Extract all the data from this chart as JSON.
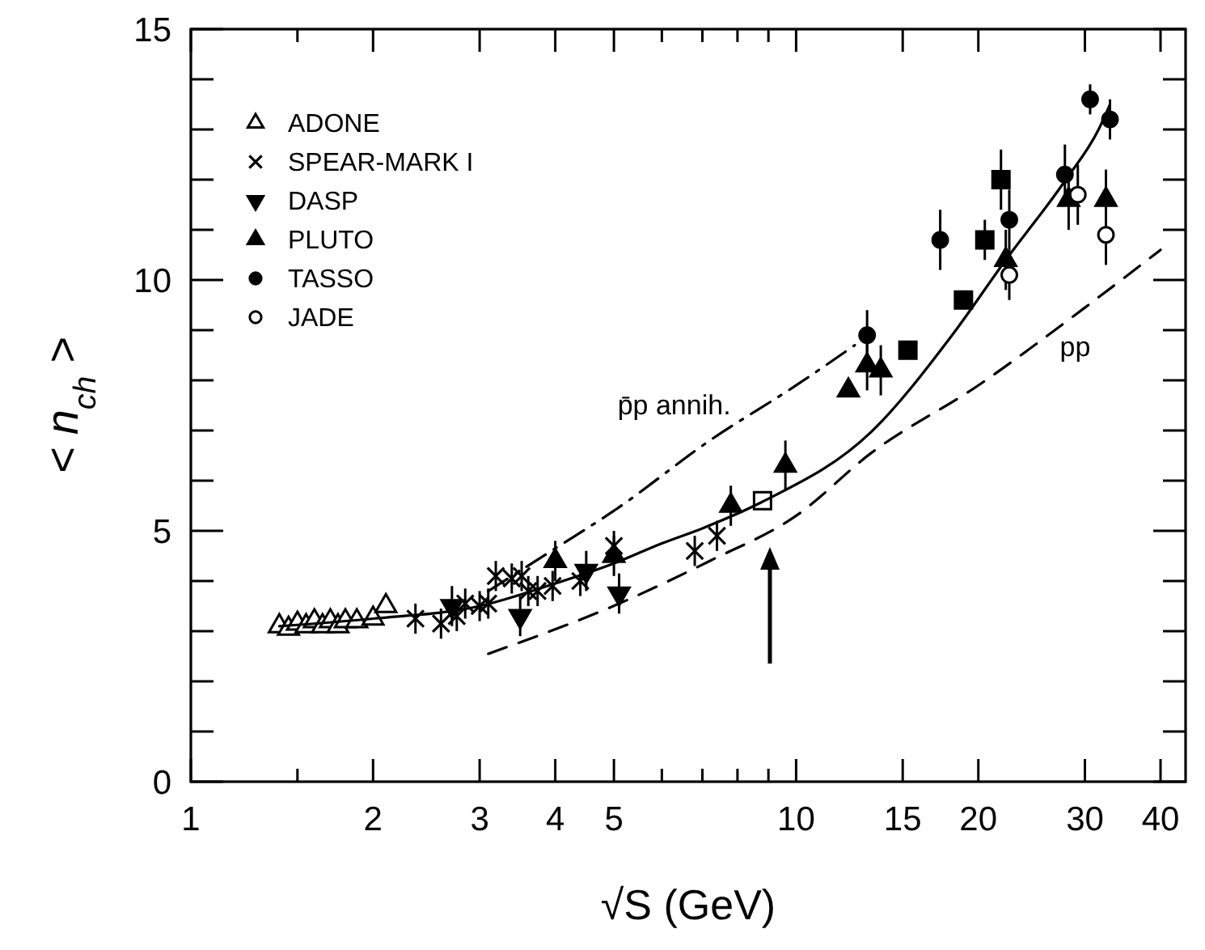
{
  "chart_data": {
    "type": "scatter",
    "xlabel": "√S (GeV)",
    "ylabel": "< n$_{ch}$ >",
    "log": "x",
    "xlim": [
      1,
      44
    ],
    "ylim": [
      0,
      15
    ],
    "xticks": [
      1,
      {
        "value": 1.5,
        "label": null
      },
      2,
      3,
      4,
      5,
      {
        "value": 6,
        "label": null
      },
      {
        "value": 7,
        "label": null
      },
      {
        "value": 8,
        "label": null
      },
      {
        "value": 9,
        "label": null
      },
      10,
      15,
      20,
      30,
      40
    ],
    "yticks": [
      0,
      {
        "value": 1,
        "label": null
      },
      {
        "value": 2,
        "label": null
      },
      {
        "value": 3,
        "label": null
      },
      {
        "value": 4,
        "label": null
      },
      5,
      {
        "value": 6,
        "label": null
      },
      {
        "value": 7,
        "label": null
      },
      {
        "value": 8,
        "label": null
      },
      {
        "value": 9,
        "label": null
      },
      10,
      {
        "value": 11,
        "label": null
      },
      {
        "value": 12,
        "label": null
      },
      {
        "value": 13,
        "label": null
      },
      {
        "value": 14,
        "label": null
      },
      15
    ],
    "legend": "top left",
    "series": [
      {
        "name": "ADONE",
        "marker": "triangle",
        "color": "#ffffff",
        "x": [
          1.4,
          1.45,
          1.5,
          1.55,
          1.6,
          1.65,
          1.7,
          1.75,
          1.8,
          1.88,
          2.0,
          2.1
        ],
        "values": [
          3.1,
          3.05,
          3.15,
          3.1,
          3.2,
          3.1,
          3.2,
          3.1,
          3.2,
          3.2,
          3.25,
          3.5
        ]
      },
      {
        "name": "SPEAR-MARK I",
        "marker": "cross",
        "color": "#000000",
        "x": [
          2.35,
          2.59,
          2.75,
          2.84,
          3.0,
          3.1,
          3.19,
          3.39,
          3.52,
          3.61,
          3.74,
          3.96,
          4.4,
          5.0,
          6.8,
          7.4
        ],
        "values": [
          3.25,
          3.15,
          3.3,
          3.55,
          3.5,
          3.55,
          4.1,
          4.05,
          4.1,
          3.8,
          3.8,
          3.9,
          4.0,
          4.7,
          4.6,
          4.9
        ],
        "errors": [
          0.3,
          0.3,
          0.3,
          0.3,
          0.3,
          0.3,
          0.3,
          0.3,
          0.3,
          0.3,
          0.3,
          0.3,
          0.3,
          0.3,
          0.3,
          0.3
        ]
      },
      {
        "name": "DASP",
        "marker": "triangle_down",
        "color": "#000000",
        "x": [
          2.7,
          3.5,
          4.5,
          5.1
        ],
        "values": [
          3.5,
          3.3,
          4.2,
          3.75
        ],
        "errors": [
          0.4,
          0.4,
          0.4,
          0.4
        ]
      },
      {
        "name": "PLUTO",
        "marker": "triangle",
        "color": "#000000",
        "x": [
          4.0,
          5.0,
          7.8,
          9.6,
          12.2,
          13.1,
          13.8,
          22.2,
          28.2,
          32.5
        ],
        "values": [
          4.4,
          4.5,
          5.5,
          6.3,
          7.8,
          8.3,
          8.2,
          10.4,
          11.6,
          11.6
        ],
        "errors": [
          0.4,
          0.4,
          0.4,
          0.5,
          null,
          0.5,
          0.5,
          0.6,
          0.6,
          0.6
        ]
      },
      {
        "name": "TASSO",
        "marker": "circle",
        "color": "#000000",
        "x": [
          13.1,
          17.3,
          22.5,
          27.8,
          30.6,
          33.0
        ],
        "values": [
          8.9,
          10.8,
          11.2,
          12.1,
          13.6,
          13.2
        ],
        "errors": [
          0.5,
          0.6,
          0.6,
          0.6,
          0.3,
          0.4
        ]
      },
      {
        "name": "JADE",
        "marker": "circle",
        "color": "#ffffff",
        "x": [
          22.5,
          29.2,
          32.5
        ],
        "values": [
          10.1,
          11.7,
          10.9
        ],
        "errors": [
          0.5,
          0.6,
          0.6
        ]
      },
      {
        "marker": "square",
        "color": "#000000",
        "x": [
          15.3,
          18.9,
          20.5,
          21.8
        ],
        "values": [
          8.6,
          9.6,
          10.8,
          12.0
        ],
        "errors": [
          null,
          null,
          0.4,
          0.6
        ]
      },
      {
        "marker": "square",
        "color": "#ffffff",
        "x": [
          8.8
        ],
        "values": [
          5.6
        ]
      },
      {
        "type": "line",
        "line_style": "solid",
        "color": "#000000",
        "x": [
          1.4,
          2,
          3,
          4,
          5,
          6,
          7,
          8.8,
          13.3,
          18.1,
          22.2,
          27.9,
          31.6,
          33
        ],
        "values": [
          3.1,
          3.25,
          3.5,
          3.95,
          4.35,
          4.75,
          5.05,
          5.58,
          6.97,
          8.9,
          10.4,
          12.0,
          13.0,
          13.5
        ]
      },
      {
        "name": "p̄p annih.",
        "type": "line",
        "line_style": "dashdot",
        "color": "#000000",
        "x": [
          3.1,
          4,
          5,
          7.2,
          10,
          12.5
        ],
        "values": [
          3.8,
          4.65,
          5.4,
          6.8,
          7.9,
          8.7
        ]
      },
      {
        "name": "pp",
        "type": "line",
        "line_style": "dashed",
        "color": "#000000",
        "x": [
          3.1,
          5.1,
          7.2,
          10,
          13.3,
          20,
          30,
          40
        ],
        "values": [
          2.55,
          3.55,
          4.4,
          5.3,
          6.55,
          7.9,
          9.45,
          10.6
        ]
      }
    ]
  }
}
